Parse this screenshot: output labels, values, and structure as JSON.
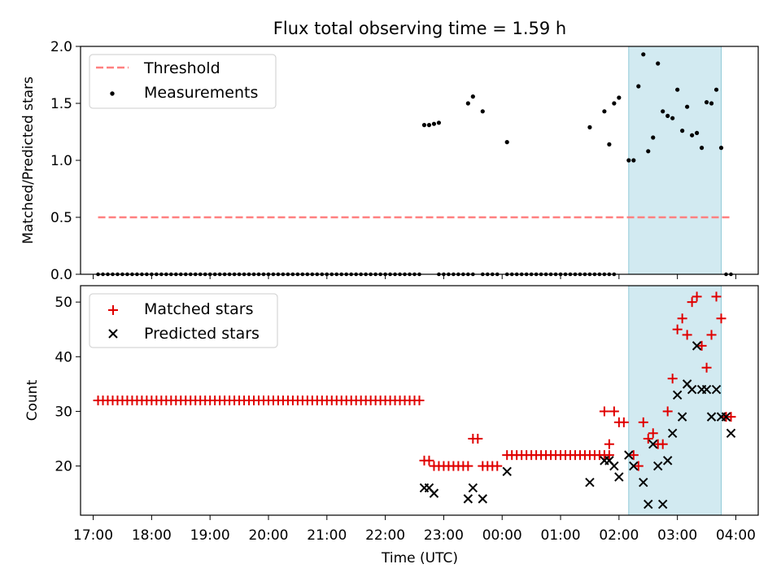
{
  "title": "Flux total observing time = 1.59 h",
  "colors": {
    "threshold": "#ff8080",
    "matched": "#e00000",
    "predicted": "#000000",
    "highlight": "#add8e6",
    "measurement": "#000000"
  },
  "chart_data": [
    {
      "type": "scatter",
      "ylabel": "Matched/Predicted stars",
      "ylim": [
        0,
        2.0
      ],
      "yticks": [
        "0.0",
        "0.5",
        "1.0",
        "1.5",
        "2.0"
      ],
      "xlim": [
        "16:47",
        "04:23"
      ],
      "highlight_span": [
        "02:10",
        "03:45"
      ],
      "legend_placement": "upper-left",
      "legend": {
        "threshold": "Threshold",
        "measurements": "Measurements"
      },
      "threshold": {
        "value": 0.5,
        "x": [
          "17:05",
          "03:55"
        ]
      },
      "zero_intervals": [
        [
          "17:05",
          "22:35"
        ],
        [
          "22:55",
          "23:30"
        ],
        [
          "23:40",
          "23:45"
        ],
        [
          "23:50",
          "23:55"
        ],
        [
          "00:05",
          "01:55"
        ],
        [
          "03:50",
          "03:55"
        ]
      ],
      "measurements": [
        [
          "22:40",
          1.31
        ],
        [
          "22:45",
          1.31
        ],
        [
          "22:50",
          1.32
        ],
        [
          "22:55",
          1.33
        ],
        [
          "23:25",
          1.5
        ],
        [
          "23:30",
          1.56
        ],
        [
          "23:40",
          1.43
        ],
        [
          "00:05",
          1.16
        ],
        [
          "01:30",
          1.29
        ],
        [
          "01:45",
          1.43
        ],
        [
          "01:50",
          1.14
        ],
        [
          "01:55",
          1.5
        ],
        [
          "02:00",
          1.55
        ],
        [
          "02:10",
          1.0
        ],
        [
          "02:15",
          1.0
        ],
        [
          "02:20",
          1.65
        ],
        [
          "02:25",
          1.93
        ],
        [
          "02:30",
          1.08
        ],
        [
          "02:35",
          1.2
        ],
        [
          "02:40",
          1.85
        ],
        [
          "02:45",
          1.43
        ],
        [
          "02:50",
          1.39
        ],
        [
          "02:55",
          1.37
        ],
        [
          "03:00",
          1.62
        ],
        [
          "03:05",
          1.26
        ],
        [
          "03:10",
          1.47
        ],
        [
          "03:15",
          1.22
        ],
        [
          "03:20",
          1.24
        ],
        [
          "03:25",
          1.11
        ],
        [
          "03:30",
          1.51
        ],
        [
          "03:35",
          1.5
        ],
        [
          "03:40",
          1.62
        ],
        [
          "03:45",
          1.11
        ]
      ]
    },
    {
      "type": "scatter",
      "xlabel": "Time (UTC)",
      "ylabel": "Count",
      "ylim": [
        11,
        53
      ],
      "yticks": [
        "20",
        "30",
        "40",
        "50"
      ],
      "xlim": [
        "16:47",
        "04:23"
      ],
      "xticks": [
        "17:00",
        "18:00",
        "19:00",
        "20:00",
        "21:00",
        "22:00",
        "23:00",
        "00:00",
        "01:00",
        "02:00",
        "03:00",
        "04:00"
      ],
      "highlight_span": [
        "02:10",
        "03:45"
      ],
      "legend_placement": "upper-left",
      "legend": {
        "matched": "Matched stars",
        "predicted": "Predicted stars"
      },
      "matched_runs": [
        {
          "from": "17:05",
          "to": "22:35",
          "value": 32
        },
        {
          "from": "23:05",
          "to": "23:20",
          "value": 20
        },
        {
          "from": "23:40",
          "to": "23:55",
          "value": 20
        },
        {
          "from": "00:05",
          "to": "01:50",
          "value": 22
        }
      ],
      "matched": [
        [
          "22:40",
          21
        ],
        [
          "22:45",
          21
        ],
        [
          "22:50",
          20
        ],
        [
          "22:55",
          20
        ],
        [
          "23:00",
          20
        ],
        [
          "23:25",
          20
        ],
        [
          "23:30",
          25
        ],
        [
          "23:35",
          25
        ],
        [
          "01:45",
          30
        ],
        [
          "01:50",
          24
        ],
        [
          "01:55",
          30
        ],
        [
          "02:00",
          28
        ],
        [
          "02:05",
          28
        ],
        [
          "02:15",
          22
        ],
        [
          "02:20",
          20
        ],
        [
          "02:25",
          28
        ],
        [
          "02:30",
          25
        ],
        [
          "02:35",
          26
        ],
        [
          "02:40",
          24
        ],
        [
          "02:45",
          24
        ],
        [
          "02:50",
          30
        ],
        [
          "02:55",
          36
        ],
        [
          "03:00",
          45
        ],
        [
          "03:05",
          47
        ],
        [
          "03:10",
          44
        ],
        [
          "03:15",
          50
        ],
        [
          "03:20",
          51
        ],
        [
          "03:25",
          42
        ],
        [
          "03:30",
          38
        ],
        [
          "03:35",
          44
        ],
        [
          "03:40",
          51
        ],
        [
          "03:45",
          47
        ],
        [
          "03:50",
          29
        ],
        [
          "03:55",
          29
        ]
      ],
      "predicted": [
        [
          "22:40",
          16
        ],
        [
          "22:45",
          16
        ],
        [
          "22:50",
          15
        ],
        [
          "23:25",
          14
        ],
        [
          "23:30",
          16
        ],
        [
          "23:40",
          14
        ],
        [
          "00:05",
          19
        ],
        [
          "01:30",
          17
        ],
        [
          "01:45",
          21
        ],
        [
          "01:50",
          21
        ],
        [
          "01:55",
          20
        ],
        [
          "02:00",
          18
        ],
        [
          "02:10",
          22
        ],
        [
          "02:15",
          20
        ],
        [
          "02:25",
          17
        ],
        [
          "02:30",
          13
        ],
        [
          "02:35",
          24
        ],
        [
          "02:40",
          20
        ],
        [
          "02:45",
          13
        ],
        [
          "02:50",
          21
        ],
        [
          "02:55",
          26
        ],
        [
          "03:00",
          33
        ],
        [
          "03:05",
          29
        ],
        [
          "03:10",
          35
        ],
        [
          "03:15",
          34
        ],
        [
          "03:20",
          42
        ],
        [
          "03:25",
          34
        ],
        [
          "03:30",
          34
        ],
        [
          "03:35",
          29
        ],
        [
          "03:40",
          34
        ],
        [
          "03:45",
          29
        ],
        [
          "03:50",
          29
        ],
        [
          "03:55",
          26
        ]
      ]
    }
  ]
}
